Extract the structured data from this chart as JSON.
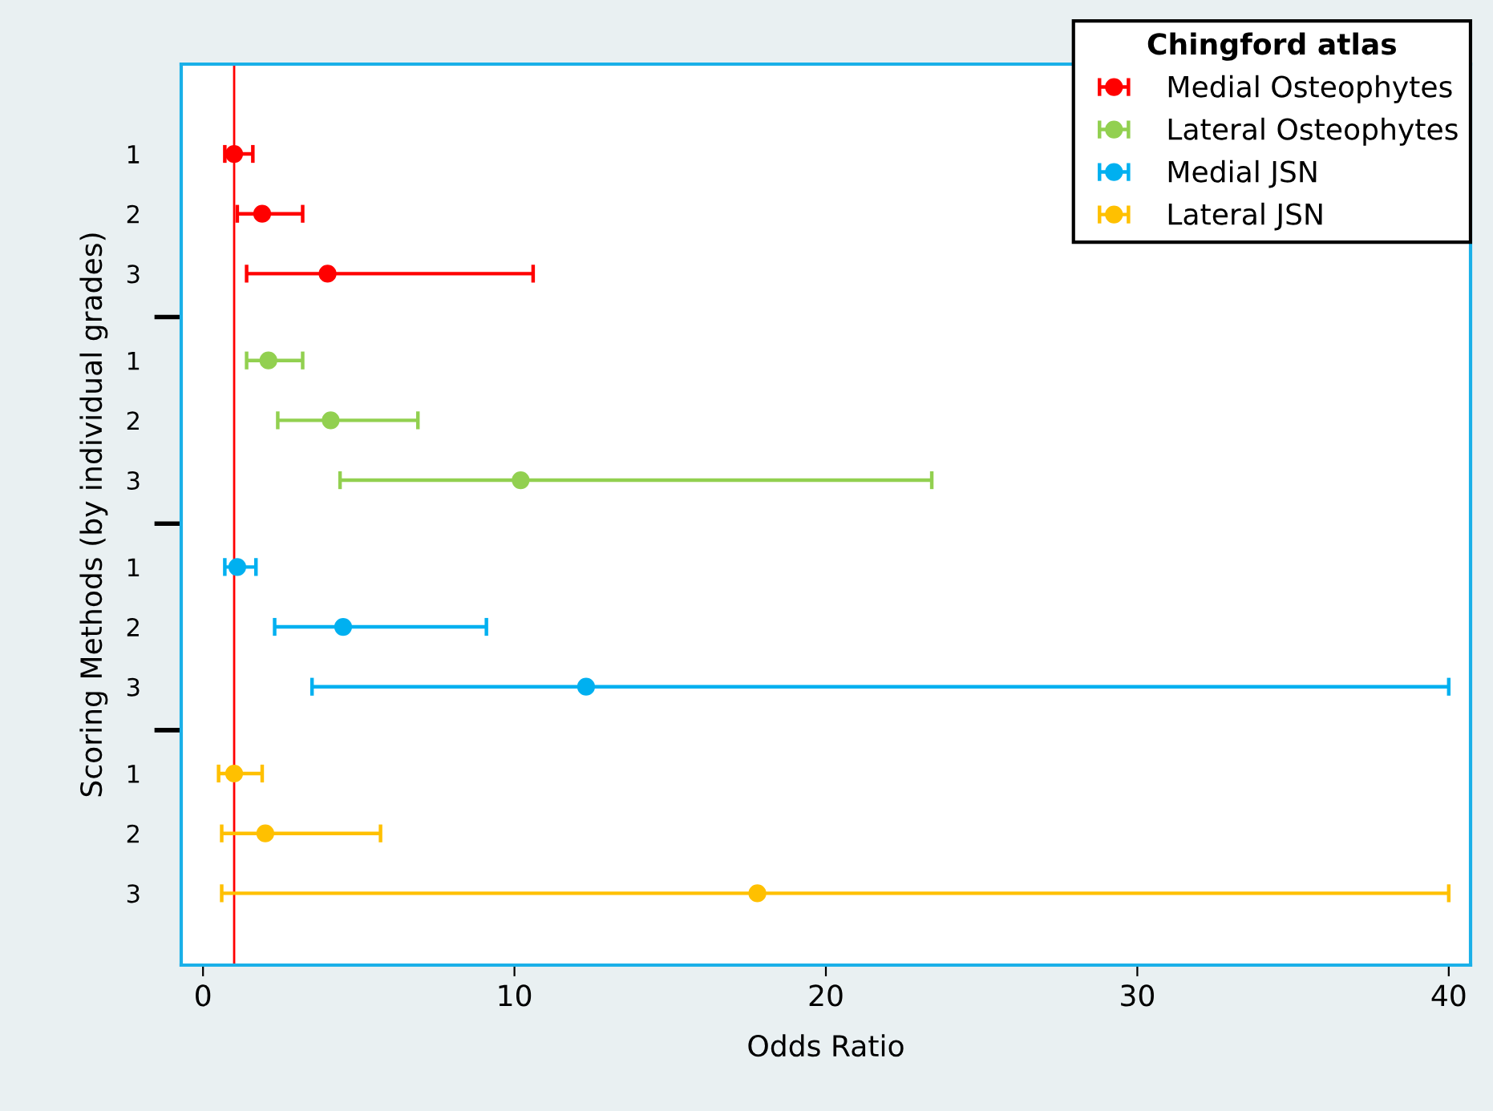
{
  "chart_data": {
    "type": "scatter",
    "orientation": "horizontal",
    "xlabel": "Odds Ratio",
    "ylabel": "Scoring Methods (by individual grades)",
    "legend_title": "Chingford atlas",
    "legend": "top right",
    "marker": "circle",
    "grid": false,
    "categories": [
      "1",
      "2",
      "3",
      "1",
      "2",
      "3",
      "1",
      "2",
      "3",
      "1",
      "2",
      "3"
    ],
    "xlim": [
      -0.7,
      40.7
    ],
    "xticks": [
      0,
      10,
      20,
      30,
      40
    ],
    "series": [
      {
        "name": "Medial Osteophytes",
        "color": "#ff0000",
        "values": [
          1.0,
          1.9,
          4.0,
          null,
          null,
          null,
          null,
          null,
          null,
          null,
          null,
          null
        ],
        "errors": [
          [
            0.7,
            1.6
          ],
          [
            1.1,
            3.2
          ],
          [
            1.4,
            10.6
          ],
          null,
          null,
          null,
          null,
          null,
          null,
          null,
          null,
          null
        ]
      },
      {
        "name": "Lateral Osteophytes",
        "color": "#92d050",
        "values": [
          null,
          null,
          null,
          2.1,
          4.1,
          10.2,
          null,
          null,
          null,
          null,
          null,
          null
        ],
        "errors": [
          null,
          null,
          null,
          [
            1.4,
            3.2
          ],
          [
            2.4,
            6.9
          ],
          [
            4.4,
            23.4
          ],
          null,
          null,
          null,
          null,
          null,
          null
        ]
      },
      {
        "name": "Medial JSN",
        "color": "#00b0f0",
        "values": [
          null,
          null,
          null,
          null,
          null,
          null,
          1.1,
          4.5,
          12.3,
          null,
          null,
          null
        ],
        "errors": [
          null,
          null,
          null,
          null,
          null,
          null,
          [
            0.7,
            1.7
          ],
          [
            2.3,
            9.1
          ],
          [
            3.5,
            40
          ],
          null,
          null,
          null
        ]
      },
      {
        "name": "Lateral JSN",
        "color": "#ffc000",
        "values": [
          null,
          null,
          null,
          null,
          null,
          null,
          null,
          null,
          null,
          1.0,
          2.0,
          17.8
        ],
        "errors": [
          null,
          null,
          null,
          null,
          null,
          null,
          null,
          null,
          null,
          [
            0.5,
            1.9
          ],
          [
            0.6,
            5.7
          ],
          [
            0.6,
            40
          ]
        ]
      }
    ],
    "ref_lines": [
      {
        "axis": "x",
        "value": 1,
        "color": "#ff0000"
      }
    ]
  }
}
